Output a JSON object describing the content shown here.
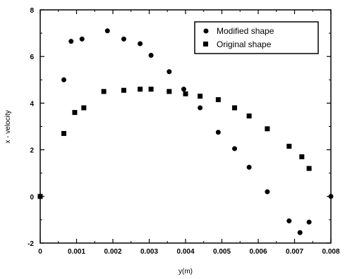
{
  "chart_data": {
    "type": "scatter",
    "xlabel": "y(m)",
    "ylabel": "x - velocity",
    "xlim": [
      0,
      0.008
    ],
    "ylim": [
      -2,
      8
    ],
    "x_ticks": [
      "0",
      "0.001",
      "0.002",
      "0.003",
      "0.004",
      "0.005",
      "0.006",
      "0.007",
      "0.008"
    ],
    "y_ticks": [
      "-2",
      "0",
      "2",
      "4",
      "6",
      "8"
    ],
    "legend_position": "top-right",
    "series": [
      {
        "name": "Modified shape",
        "marker": "circle",
        "points": [
          {
            "x": 0.0,
            "y": 0.0
          },
          {
            "x": 0.00065,
            "y": 5.0
          },
          {
            "x": 0.00085,
            "y": 6.65
          },
          {
            "x": 0.00115,
            "y": 6.75
          },
          {
            "x": 0.00185,
            "y": 7.1
          },
          {
            "x": 0.0023,
            "y": 6.75
          },
          {
            "x": 0.00275,
            "y": 6.55
          },
          {
            "x": 0.00305,
            "y": 6.05
          },
          {
            "x": 0.00355,
            "y": 5.35
          },
          {
            "x": 0.00395,
            "y": 4.6
          },
          {
            "x": 0.0044,
            "y": 3.8
          },
          {
            "x": 0.0049,
            "y": 2.75
          },
          {
            "x": 0.00535,
            "y": 2.05
          },
          {
            "x": 0.00575,
            "y": 1.25
          },
          {
            "x": 0.00625,
            "y": 0.2
          },
          {
            "x": 0.00685,
            "y": -1.05
          },
          {
            "x": 0.00715,
            "y": -1.55
          },
          {
            "x": 0.0074,
            "y": -1.1
          },
          {
            "x": 0.008,
            "y": 0.0
          }
        ]
      },
      {
        "name": "Original shape",
        "marker": "square",
        "points": [
          {
            "x": 0.0,
            "y": 0.0
          },
          {
            "x": 0.00065,
            "y": 2.7
          },
          {
            "x": 0.00095,
            "y": 3.6
          },
          {
            "x": 0.0012,
            "y": 3.8
          },
          {
            "x": 0.00175,
            "y": 4.5
          },
          {
            "x": 0.0023,
            "y": 4.55
          },
          {
            "x": 0.00275,
            "y": 4.6
          },
          {
            "x": 0.00305,
            "y": 4.6
          },
          {
            "x": 0.00355,
            "y": 4.5
          },
          {
            "x": 0.004,
            "y": 4.4
          },
          {
            "x": 0.0044,
            "y": 4.3
          },
          {
            "x": 0.0049,
            "y": 4.15
          },
          {
            "x": 0.00535,
            "y": 3.8
          },
          {
            "x": 0.00575,
            "y": 3.45
          },
          {
            "x": 0.00625,
            "y": 2.9
          },
          {
            "x": 0.00685,
            "y": 2.15
          },
          {
            "x": 0.0072,
            "y": 1.7
          },
          {
            "x": 0.0074,
            "y": 1.2
          }
        ]
      }
    ]
  }
}
